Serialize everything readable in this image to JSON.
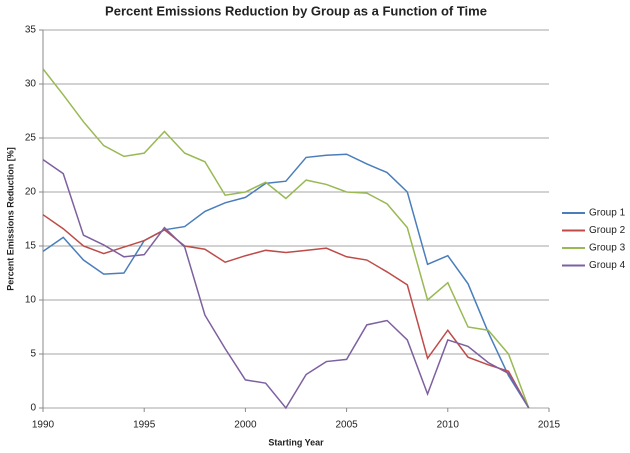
{
  "chart_data": {
    "type": "line",
    "title": "Percent Emissions Reduction by Group as a Function of Time",
    "x_label": "Starting Year",
    "y_label": "Percent Emissions Reduction [%]",
    "x": [
      1990,
      1991,
      1992,
      1993,
      1994,
      1995,
      1996,
      1997,
      1998,
      1999,
      2000,
      2001,
      2002,
      2003,
      2004,
      2005,
      2006,
      2007,
      2008,
      2009,
      2010,
      2011,
      2012,
      2013,
      2014
    ],
    "series": [
      {
        "name": "Group 1",
        "color": "#4a7ebb",
        "values": [
          14.5,
          15.8,
          13.7,
          12.4,
          12.5,
          15.5,
          16.5,
          16.8,
          18.2,
          19.0,
          19.5,
          20.8,
          21.0,
          23.2,
          23.4,
          23.5,
          22.6,
          21.8,
          20.0,
          13.3,
          14.1,
          11.5,
          7.0,
          3.0,
          0
        ]
      },
      {
        "name": "Group 2",
        "color": "#be4b48",
        "values": [
          17.9,
          16.6,
          15.0,
          14.3,
          14.9,
          15.5,
          16.5,
          15.0,
          14.7,
          13.5,
          14.1,
          14.6,
          14.4,
          14.6,
          14.8,
          14.0,
          13.7,
          12.6,
          11.4,
          4.6,
          7.2,
          4.7,
          4.0,
          3.4,
          0
        ]
      },
      {
        "name": "Group 3",
        "color": "#98b954",
        "values": [
          31.4,
          29.0,
          26.5,
          24.3,
          23.3,
          23.6,
          25.6,
          23.6,
          22.8,
          19.7,
          20.0,
          20.9,
          19.4,
          21.1,
          20.7,
          20.0,
          19.9,
          18.9,
          16.7,
          10.0,
          11.6,
          7.5,
          7.2,
          5.0,
          0
        ]
      },
      {
        "name": "Group 4",
        "color": "#7d60a0",
        "values": [
          23.0,
          21.7,
          16.0,
          15.1,
          14.0,
          14.2,
          16.7,
          14.9,
          8.6,
          5.5,
          2.6,
          2.3,
          0,
          3.1,
          4.3,
          4.5,
          7.7,
          8.1,
          6.3,
          1.3,
          6.3,
          5.7,
          4.2,
          3.2,
          0
        ]
      }
    ],
    "xlim": [
      1990,
      2015
    ],
    "xticks": [
      1990,
      1995,
      2000,
      2005,
      2010,
      2015
    ],
    "ylim": [
      0,
      35
    ],
    "yticks": [
      0,
      5,
      10,
      15,
      20,
      25,
      30,
      35
    ],
    "grid": true,
    "legend": "right"
  }
}
